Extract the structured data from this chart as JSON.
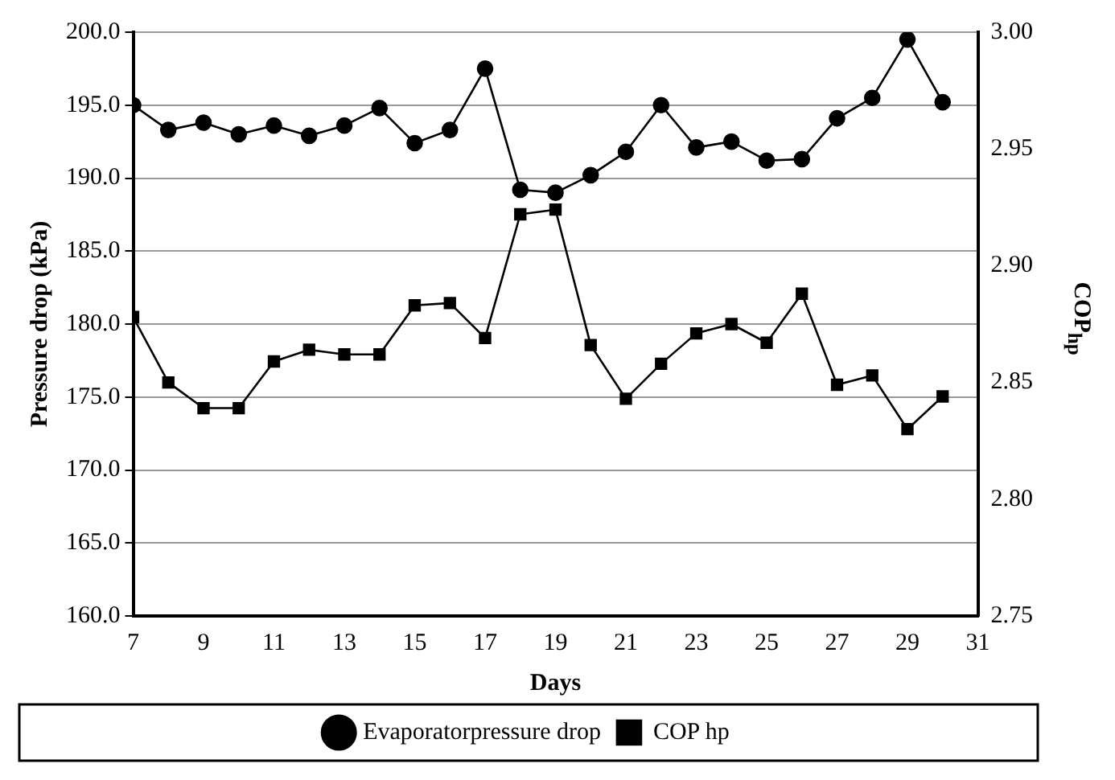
{
  "chart_data": {
    "type": "line",
    "xlabel": "Days",
    "ylabel": "Pressure drop (kPa)",
    "y2label": "COP$_{hp}$",
    "x": [
      7,
      8,
      9,
      10,
      11,
      12,
      13,
      14,
      15,
      16,
      17,
      18,
      19,
      20,
      21,
      22,
      23,
      24,
      25,
      26,
      27,
      28,
      29,
      30
    ],
    "series": [
      {
        "name": "Evaporatorpressure drop",
        "color": "#000000",
        "marker": "circle",
        "values": [
          195.0,
          193.3,
          193.8,
          193.0,
          193.6,
          192.9,
          193.6,
          194.8,
          192.4,
          193.3,
          197.5,
          189.2,
          189.0,
          190.2,
          191.8,
          195.0,
          192.1,
          192.5,
          191.2,
          191.3,
          194.1,
          195.5,
          199.5,
          195.2
        ]
      },
      {
        "name": "COP hp",
        "color": "#000000",
        "marker": "square",
        "axis": "y2",
        "values": [
          2.878,
          2.85,
          2.839,
          2.839,
          2.859,
          2.864,
          2.862,
          2.862,
          2.883,
          2.884,
          2.869,
          2.922,
          2.924,
          2.866,
          2.843,
          2.858,
          2.871,
          2.875,
          2.867,
          2.888,
          2.849,
          2.853,
          2.83,
          2.844
        ]
      }
    ],
    "xlim": [
      7,
      31
    ],
    "xticks": [
      7,
      9,
      11,
      13,
      15,
      17,
      19,
      21,
      23,
      25,
      27,
      29,
      31
    ],
    "ylim": [
      160,
      200
    ],
    "yticks": [
      {
        "value": 160,
        "label": "160.0"
      },
      {
        "value": 165,
        "label": "165.0"
      },
      {
        "value": 170,
        "label": "170.0"
      },
      {
        "value": 175,
        "label": "175.0"
      },
      {
        "value": 180,
        "label": "180.0"
      },
      {
        "value": 185,
        "label": "185.0"
      },
      {
        "value": 190,
        "label": "190.0"
      },
      {
        "value": 195,
        "label": "195.0"
      },
      {
        "value": 200,
        "label": "200.0"
      }
    ],
    "y2lim": [
      2.75,
      3.0
    ],
    "y2ticks": [
      2.75,
      {
        "value": 2.8,
        "label": "2.80"
      },
      2.85,
      {
        "value": 2.9,
        "label": "2.90"
      },
      2.95,
      {
        "value": 3.0,
        "label": "3.00"
      }
    ],
    "grid": "y",
    "legend": "bottom",
    "line_style": "solid"
  }
}
